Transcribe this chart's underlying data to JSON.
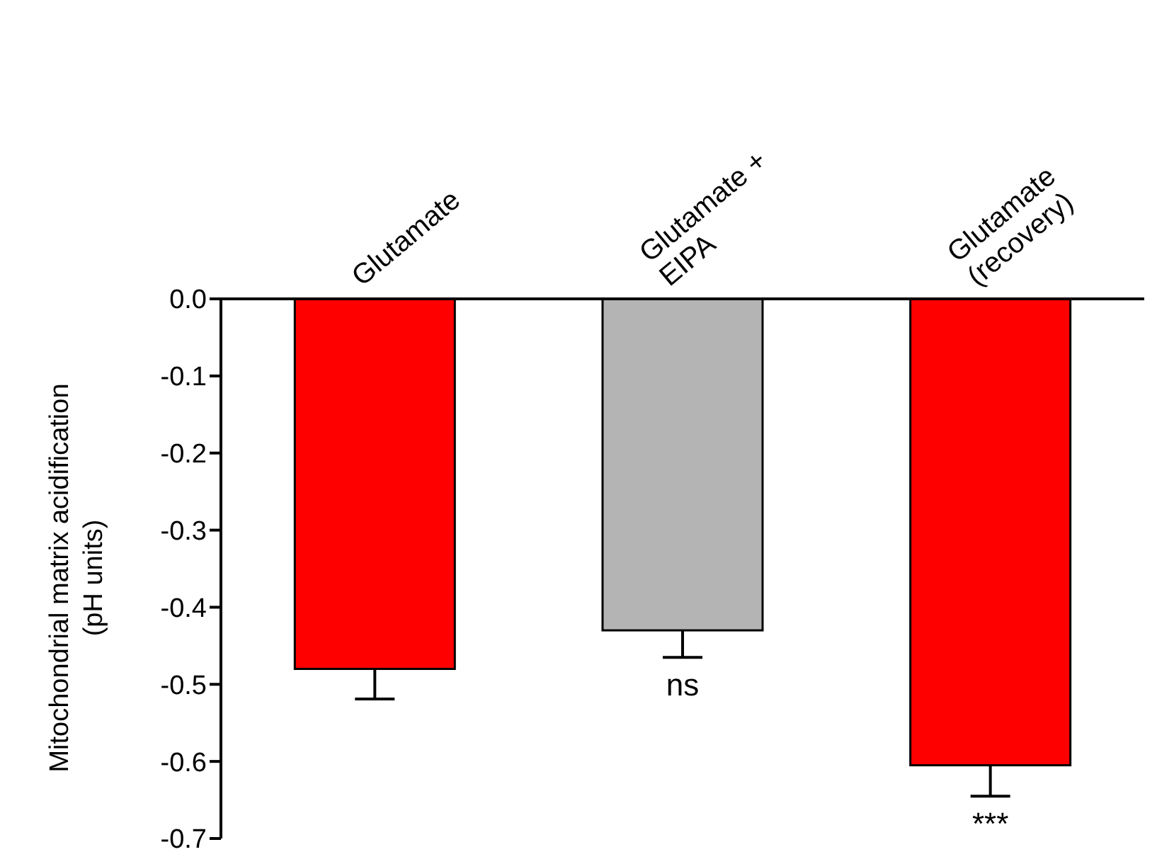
{
  "chart_data": {
    "type": "bar",
    "categories": [
      "Glutamate",
      "Glutamate +\nEIPA",
      "Glutamate\n(recovery)"
    ],
    "values": [
      -0.48,
      -0.43,
      -0.605
    ],
    "colors": [
      "#ff0000",
      "#b4b4b4",
      "#ff0000"
    ],
    "errors": [
      [
        -0.519,
        -0.48
      ],
      [
        -0.465,
        -0.43
      ],
      [
        -0.645,
        -0.605
      ]
    ],
    "ylabel": "Mitochondrial matrix acidification\n(pH units)",
    "ylim": [
      -0.7,
      0
    ],
    "yticks": [
      {
        "value": -0.7,
        "label": "-0.7"
      },
      {
        "value": -0.6,
        "label": "-0.6"
      },
      {
        "value": -0.5,
        "label": "-0.5"
      },
      {
        "value": -0.4,
        "label": "-0.4"
      },
      {
        "value": -0.3,
        "label": "-0.3"
      },
      {
        "value": -0.2,
        "label": "-0.2"
      },
      {
        "value": -0.1,
        "label": "-0.1"
      },
      {
        "value": 0,
        "label": "0.0"
      }
    ],
    "annotations": [
      "ns",
      "***"
    ],
    "grid": false,
    "legend": false
  }
}
